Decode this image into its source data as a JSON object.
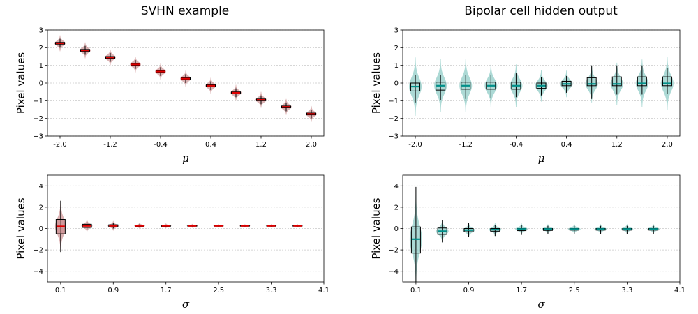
{
  "titles": {
    "left": "SVHN example",
    "right": "Bipolar cell hidden output"
  },
  "colors": {
    "left_violin": "#c8888a",
    "left_median": "#e00000",
    "right_violin": "#7fc4bf",
    "right_median": "#00908a",
    "grid": "#c8c8c8"
  },
  "chart_data": [
    {
      "type": "violin",
      "panel": "top-left",
      "xlabel": "μ",
      "ylabel": "Pixel values",
      "xlim": [
        -2.2,
        2.2
      ],
      "ylim": [
        -3,
        3
      ],
      "xticks": [
        -2.0,
        -1.2,
        -0.4,
        0.4,
        1.2,
        2.0
      ],
      "xtick_labels": [
        "-2.0",
        "-1.2",
        "-0.4",
        "0.4",
        "1.2",
        "2.0"
      ],
      "yticks": [
        -3,
        -2,
        -1,
        0,
        1,
        2,
        3
      ],
      "ytick_labels": [
        "−3",
        "−2",
        "−1",
        "0",
        "1",
        "2",
        "3"
      ],
      "grid": "y",
      "x": [
        -2.0,
        -1.6,
        -1.2,
        -0.8,
        -0.4,
        0.0,
        0.4,
        0.8,
        1.2,
        1.6,
        2.0
      ],
      "median": [
        2.25,
        1.85,
        1.45,
        1.05,
        0.65,
        0.25,
        -0.15,
        -0.55,
        -0.95,
        -1.35,
        -1.75
      ],
      "q1": [
        2.2,
        1.8,
        1.4,
        1.0,
        0.6,
        0.2,
        -0.2,
        -0.6,
        -1.0,
        -1.4,
        -1.8
      ],
      "q3": [
        2.3,
        1.9,
        1.5,
        1.1,
        0.7,
        0.3,
        -0.1,
        -0.5,
        -0.9,
        -1.3,
        -1.7
      ],
      "whisker_low": [
        2.0,
        1.6,
        1.2,
        0.8,
        0.4,
        0.0,
        -0.4,
        -0.8,
        -1.2,
        -1.6,
        -2.0
      ],
      "whisker_high": [
        2.5,
        2.1,
        1.7,
        1.3,
        0.9,
        0.5,
        0.1,
        -0.3,
        -0.7,
        -1.1,
        -1.5
      ],
      "spread": [
        0.3,
        0.3,
        0.3,
        0.3,
        0.3,
        0.3,
        0.3,
        0.3,
        0.3,
        0.3,
        0.3
      ]
    },
    {
      "type": "violin",
      "panel": "top-right",
      "xlabel": "μ",
      "ylabel": "Pixel values",
      "xlim": [
        -2.2,
        2.2
      ],
      "ylim": [
        -3,
        3
      ],
      "xticks": [
        -2.0,
        -1.2,
        -0.4,
        0.4,
        1.2,
        2.0
      ],
      "xtick_labels": [
        "-2.0",
        "-1.2",
        "-0.4",
        "0.4",
        "1.2",
        "2.0"
      ],
      "yticks": [
        -3,
        -2,
        -1,
        0,
        1,
        2,
        3
      ],
      "ytick_labels": [
        "−3",
        "−2",
        "−1",
        "0",
        "1",
        "2",
        "3"
      ],
      "grid": "y",
      "x": [
        -2.0,
        -1.6,
        -1.2,
        -0.8,
        -0.4,
        0.0,
        0.4,
        0.8,
        1.2,
        1.6,
        2.0
      ],
      "median": [
        -0.2,
        -0.15,
        -0.15,
        -0.15,
        -0.15,
        -0.15,
        -0.05,
        -0.05,
        -0.05,
        -0.02,
        -0.02
      ],
      "q1": [
        -0.45,
        -0.4,
        -0.35,
        -0.35,
        -0.35,
        -0.3,
        -0.15,
        -0.15,
        -0.15,
        -0.15,
        -0.15
      ],
      "q3": [
        0.0,
        0.05,
        0.05,
        0.05,
        0.05,
        -0.0,
        0.1,
        0.3,
        0.35,
        0.35,
        0.35
      ],
      "whisker_low": [
        -1.1,
        -0.95,
        -0.9,
        -0.85,
        -0.8,
        -0.7,
        -0.55,
        -0.9,
        -0.65,
        -0.65,
        -0.6
      ],
      "whisker_high": [
        0.45,
        0.45,
        0.45,
        0.45,
        0.55,
        0.35,
        0.4,
        1.0,
        1.0,
        1.0,
        0.85
      ],
      "spread": [
        1.1,
        1.0,
        1.0,
        0.8,
        0.8,
        0.6,
        0.5,
        0.7,
        0.8,
        0.9,
        1.0
      ]
    },
    {
      "type": "violin",
      "panel": "bottom-left",
      "xlabel": "σ",
      "ylabel": "Pixel values",
      "xlim": [
        -0.1,
        4.1
      ],
      "ylim": [
        -5,
        5
      ],
      "xticks": [
        0.1,
        0.9,
        1.7,
        2.5,
        3.3,
        4.1
      ],
      "xtick_labels": [
        "0.1",
        "0.9",
        "1.7",
        "2.5",
        "3.3",
        "4.1"
      ],
      "yticks": [
        -4,
        -2,
        0,
        2,
        4
      ],
      "ytick_labels": [
        "−4",
        "−2",
        "0",
        "2",
        "4"
      ],
      "grid": "y",
      "x": [
        0.1,
        0.5,
        0.9,
        1.3,
        1.7,
        2.1,
        2.5,
        2.9,
        3.3,
        3.7
      ],
      "median": [
        0.2,
        0.25,
        0.25,
        0.25,
        0.25,
        0.25,
        0.25,
        0.25,
        0.25,
        0.25
      ],
      "q1": [
        -0.5,
        0.1,
        0.15,
        0.2,
        0.2,
        0.22,
        0.22,
        0.22,
        0.22,
        0.22
      ],
      "q3": [
        0.85,
        0.4,
        0.35,
        0.3,
        0.3,
        0.28,
        0.28,
        0.28,
        0.28,
        0.28
      ],
      "whisker_low": [
        -2.2,
        -0.2,
        0.0,
        0.1,
        0.15,
        0.18,
        0.18,
        0.18,
        0.18,
        0.18
      ],
      "whisker_high": [
        2.6,
        0.65,
        0.5,
        0.4,
        0.35,
        0.32,
        0.32,
        0.32,
        0.32,
        0.32
      ],
      "spread": [
        1.6,
        0.4,
        0.3,
        0.2,
        0.15,
        0.12,
        0.1,
        0.1,
        0.1,
        0.1
      ]
    },
    {
      "type": "violin",
      "panel": "bottom-right",
      "xlabel": "σ",
      "ylabel": "Pixel values",
      "xlim": [
        -0.1,
        4.1
      ],
      "ylim": [
        -5,
        5
      ],
      "xticks": [
        0.1,
        0.9,
        1.7,
        2.5,
        3.3,
        4.1
      ],
      "xtick_labels": [
        "0.1",
        "0.9",
        "1.7",
        "2.5",
        "3.3",
        "4.1"
      ],
      "yticks": [
        -4,
        -2,
        0,
        2,
        4
      ],
      "ytick_labels": [
        "−4",
        "−2",
        "0",
        "2",
        "4"
      ],
      "grid": "y",
      "x": [
        0.1,
        0.5,
        0.9,
        1.3,
        1.7,
        2.1,
        2.5,
        2.9,
        3.3,
        3.7
      ],
      "median": [
        -1.0,
        -0.25,
        -0.15,
        -0.1,
        -0.05,
        -0.05,
        -0.05,
        -0.05,
        -0.05,
        -0.05
      ],
      "q1": [
        -2.3,
        -0.55,
        -0.3,
        -0.25,
        -0.2,
        -0.18,
        -0.15,
        -0.15,
        -0.15,
        -0.15
      ],
      "q3": [
        0.15,
        0.05,
        0.0,
        0.0,
        0.0,
        0.0,
        0.0,
        0.0,
        0.0,
        0.0
      ],
      "whisker_low": [
        -5.0,
        -1.3,
        -0.8,
        -0.7,
        -0.6,
        -0.55,
        -0.5,
        -0.5,
        -0.5,
        -0.5
      ],
      "whisker_high": [
        3.9,
        0.8,
        0.5,
        0.35,
        0.3,
        0.25,
        0.25,
        0.25,
        0.25,
        0.25
      ],
      "spread": [
        2.8,
        0.7,
        0.45,
        0.4,
        0.35,
        0.3,
        0.3,
        0.3,
        0.3,
        0.3
      ]
    }
  ]
}
